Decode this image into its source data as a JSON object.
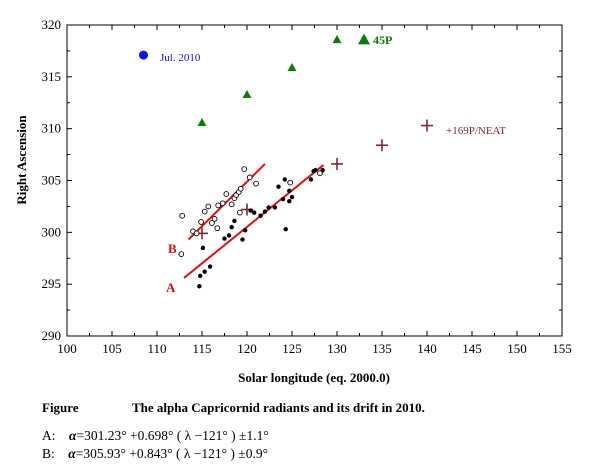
{
  "chart_data": {
    "type": "scatter",
    "xlabel": "Solar longitude (eq. 2000.0)",
    "ylabel": "Right Ascension",
    "xlim": [
      100,
      155
    ],
    "ylim": [
      290,
      320
    ],
    "x_ticks": [
      "100",
      "105",
      "110",
      "115",
      "120",
      "125",
      "130",
      "135",
      "140",
      "145",
      "150",
      "155"
    ],
    "y_ticks": [
      "290",
      "295",
      "300",
      "305",
      "310",
      "315",
      "320"
    ],
    "grid": false,
    "series": [
      {
        "marker": "filled-circle-blue",
        "color": "#1010e0",
        "points": [
          [
            108.5,
            317.1
          ]
        ]
      },
      {
        "marker": "filled-triangle-green",
        "color": "#0a7a0a",
        "points": [
          [
            115,
            310.6
          ],
          [
            120,
            313.3
          ],
          [
            125,
            315.9
          ],
          [
            130,
            318.6
          ],
          [
            133,
            318.6
          ]
        ]
      },
      {
        "marker": "plus-brown",
        "color": "#7b2b2b",
        "points": [
          [
            115,
            299.9
          ],
          [
            120,
            302.2
          ],
          [
            130,
            306.6
          ],
          [
            135,
            308.4
          ],
          [
            140,
            310.3
          ]
        ]
      },
      {
        "marker": "filled-dot-black",
        "color": "#000000",
        "points": [
          [
            114.7,
            294.8
          ],
          [
            114.8,
            295.8
          ],
          [
            115.1,
            298.5
          ],
          [
            115.3,
            296.2
          ],
          [
            115.9,
            296.7
          ],
          [
            117.5,
            299.4
          ],
          [
            118.0,
            299.7
          ],
          [
            118.3,
            300.5
          ],
          [
            118.6,
            301.1
          ],
          [
            119.5,
            299.3
          ],
          [
            119.8,
            300.2
          ],
          [
            120.4,
            302.1
          ],
          [
            120.8,
            301.9
          ],
          [
            121.5,
            301.6
          ],
          [
            122.0,
            302.0
          ],
          [
            122.4,
            302.4
          ],
          [
            123.1,
            302.4
          ],
          [
            123.5,
            304.4
          ],
          [
            124.0,
            303.2
          ],
          [
            124.2,
            305.1
          ],
          [
            124.3,
            300.3
          ],
          [
            124.7,
            304.0
          ],
          [
            125.0,
            303.4
          ],
          [
            124.7,
            303.0
          ],
          [
            127.1,
            305.1
          ],
          [
            127.4,
            305.9
          ],
          [
            127.6,
            306.0
          ],
          [
            128.4,
            306.0
          ]
        ]
      },
      {
        "marker": "open-diamond-black",
        "color": "#000000",
        "points": [
          [
            112.7,
            297.9
          ],
          [
            112.8,
            301.6
          ],
          [
            114.0,
            300.1
          ],
          [
            114.4,
            299.9
          ],
          [
            114.9,
            301.0
          ],
          [
            115.3,
            302.0
          ],
          [
            115.7,
            302.5
          ],
          [
            116.1,
            300.9
          ],
          [
            116.4,
            301.3
          ],
          [
            116.8,
            302.6
          ],
          [
            116.7,
            300.4
          ],
          [
            117.3,
            302.8
          ],
          [
            117.7,
            303.7
          ],
          [
            118.3,
            302.7
          ],
          [
            118.6,
            303.3
          ],
          [
            118.8,
            303.6
          ],
          [
            119.1,
            303.9
          ],
          [
            119.3,
            304.2
          ],
          [
            119.7,
            306.1
          ],
          [
            119.2,
            301.9
          ],
          [
            120.3,
            305.3
          ],
          [
            121.0,
            304.7
          ],
          [
            124.8,
            304.8
          ],
          [
            128.1,
            305.7
          ]
        ]
      }
    ],
    "fit_lines": [
      {
        "name": "A",
        "x": [
          113,
          128.5
        ],
        "y": [
          295.6,
          306.5
        ],
        "color": "#e01010"
      },
      {
        "name": "B",
        "x": [
          113.5,
          122
        ],
        "y": [
          299.3,
          306.6
        ],
        "color": "#e01010"
      }
    ],
    "annotations": [
      {
        "text": "Jul. 2010",
        "color": "#1010e0"
      },
      {
        "text": "45P",
        "color": "#0a7a0a"
      },
      {
        "text": "+169P/NEAT",
        "color": "#7b2b2b"
      },
      {
        "text": "A",
        "color": "#d01010"
      },
      {
        "text": "B",
        "color": "#d01010"
      }
    ]
  },
  "caption": {
    "label": "Figure",
    "title": "The alpha Capricornid radiants and its drift in 2010."
  },
  "formulas": {
    "a": {
      "label": "A:",
      "symbol": "α",
      "text": "=301.23°  +0.698°  ( λ −121° )  ±1.1°"
    },
    "b": {
      "label": "B:",
      "symbol": "α",
      "text": "=305.93°  +0.843°  ( λ −121° )  ±0.9°"
    }
  }
}
